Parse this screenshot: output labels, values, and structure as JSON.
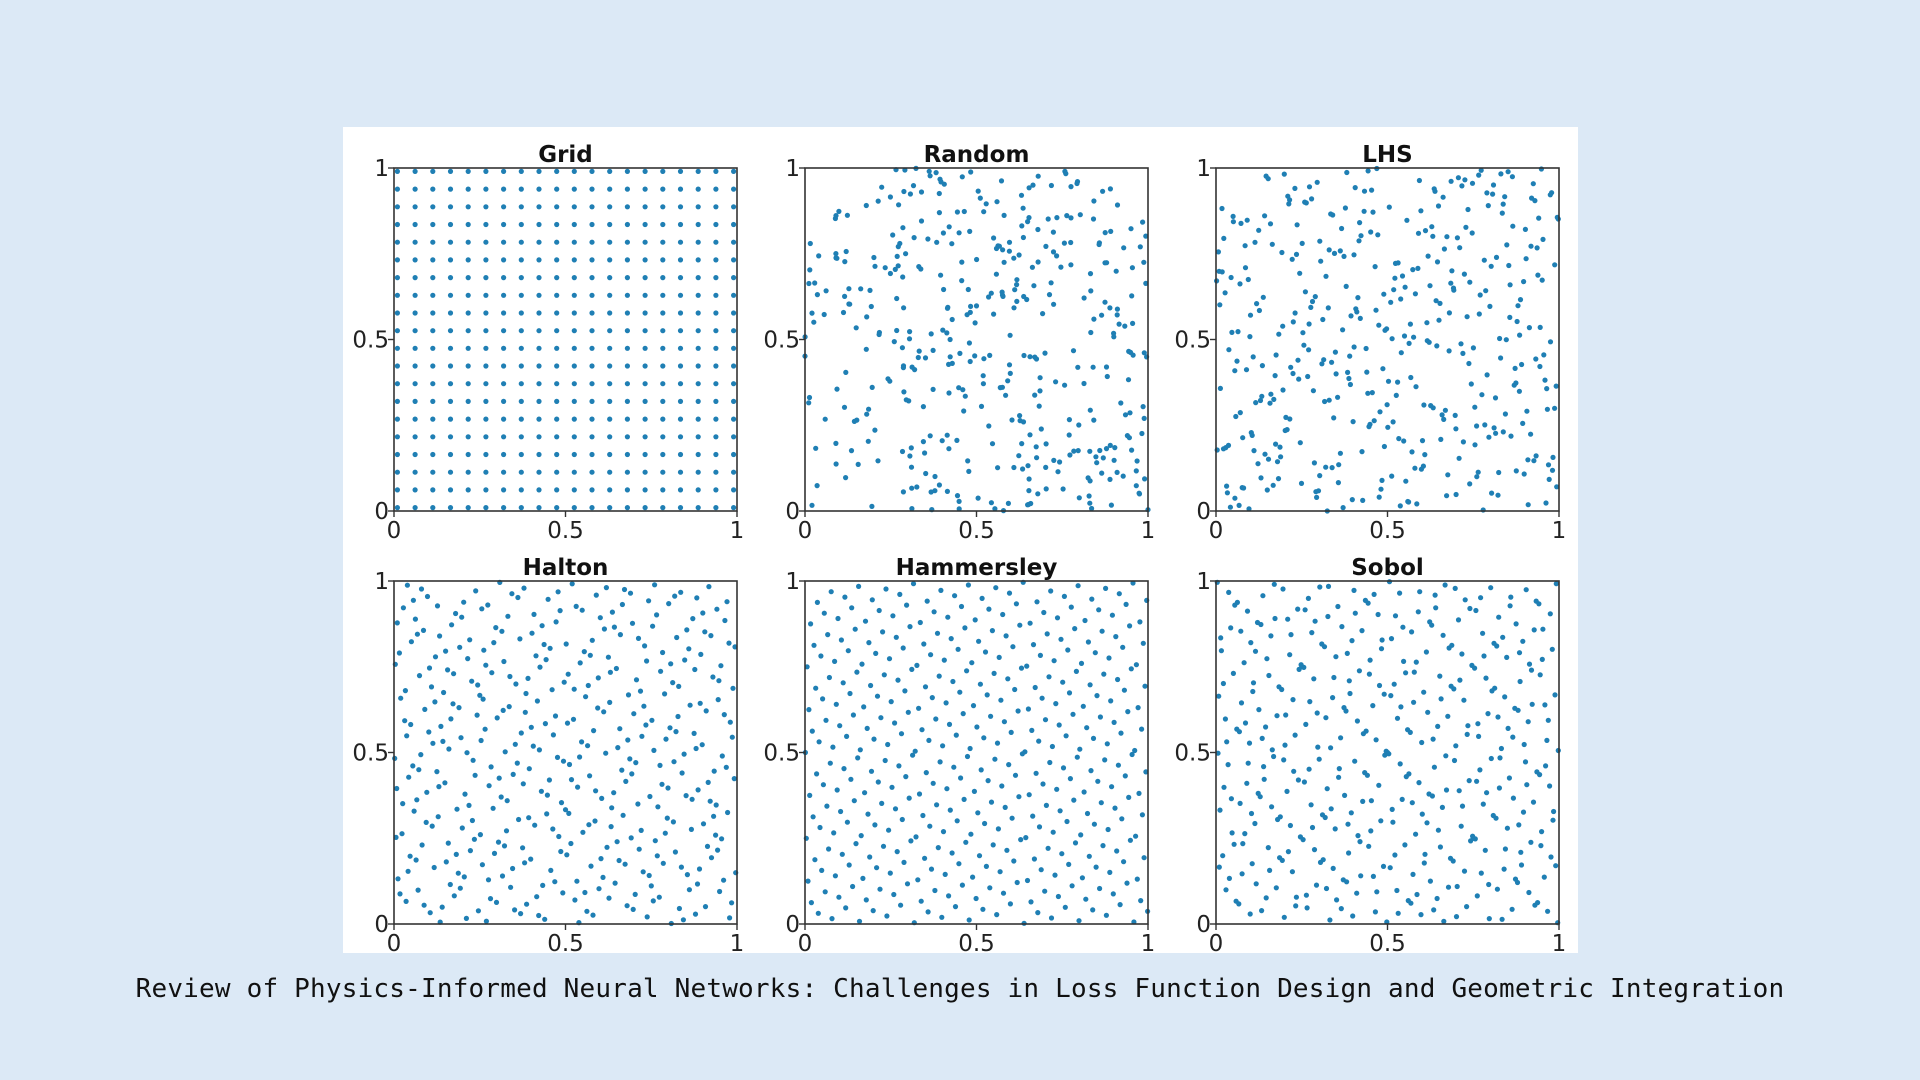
{
  "caption": "Review of Physics-Informed Neural Networks: Challenges in Loss Function Design and Geometric Integration",
  "colors": {
    "background": "#dce9f6",
    "marker": "#1f7fb4",
    "axes": "#333333"
  },
  "chart_data": [
    {
      "type": "scatter",
      "title": "Grid",
      "method": "grid",
      "n": 400,
      "xlim": [
        0,
        1
      ],
      "ylim": [
        0,
        1
      ],
      "xticks": [
        "0",
        "0.5",
        "1"
      ],
      "yticks": [
        "0",
        "0.5",
        "1"
      ]
    },
    {
      "type": "scatter",
      "title": "Random",
      "method": "random",
      "n": 400,
      "xlim": [
        0,
        1
      ],
      "ylim": [
        0,
        1
      ],
      "xticks": [
        "0",
        "0.5",
        "1"
      ],
      "yticks": [
        "0",
        "0.5",
        "1"
      ]
    },
    {
      "type": "scatter",
      "title": "LHS",
      "method": "lhs",
      "n": 400,
      "xlim": [
        0,
        1
      ],
      "ylim": [
        0,
        1
      ],
      "xticks": [
        "0",
        "0.5",
        "1"
      ],
      "yticks": [
        "0",
        "0.5",
        "1"
      ]
    },
    {
      "type": "scatter",
      "title": "Halton",
      "method": "halton",
      "n": 400,
      "xlim": [
        0,
        1
      ],
      "ylim": [
        0,
        1
      ],
      "xticks": [
        "0",
        "0.5",
        "1"
      ],
      "yticks": [
        "0",
        "0.5",
        "1"
      ]
    },
    {
      "type": "scatter",
      "title": "Hammersley",
      "method": "hammersley",
      "n": 400,
      "xlim": [
        0,
        1
      ],
      "ylim": [
        0,
        1
      ],
      "xticks": [
        "0",
        "0.5",
        "1"
      ],
      "yticks": [
        "0",
        "0.5",
        "1"
      ]
    },
    {
      "type": "scatter",
      "title": "Sobol",
      "method": "sobol",
      "n": 400,
      "xlim": [
        0,
        1
      ],
      "ylim": [
        0,
        1
      ],
      "xticks": [
        "0",
        "0.5",
        "1"
      ],
      "yticks": [
        "0",
        "0.5",
        "1"
      ]
    }
  ]
}
